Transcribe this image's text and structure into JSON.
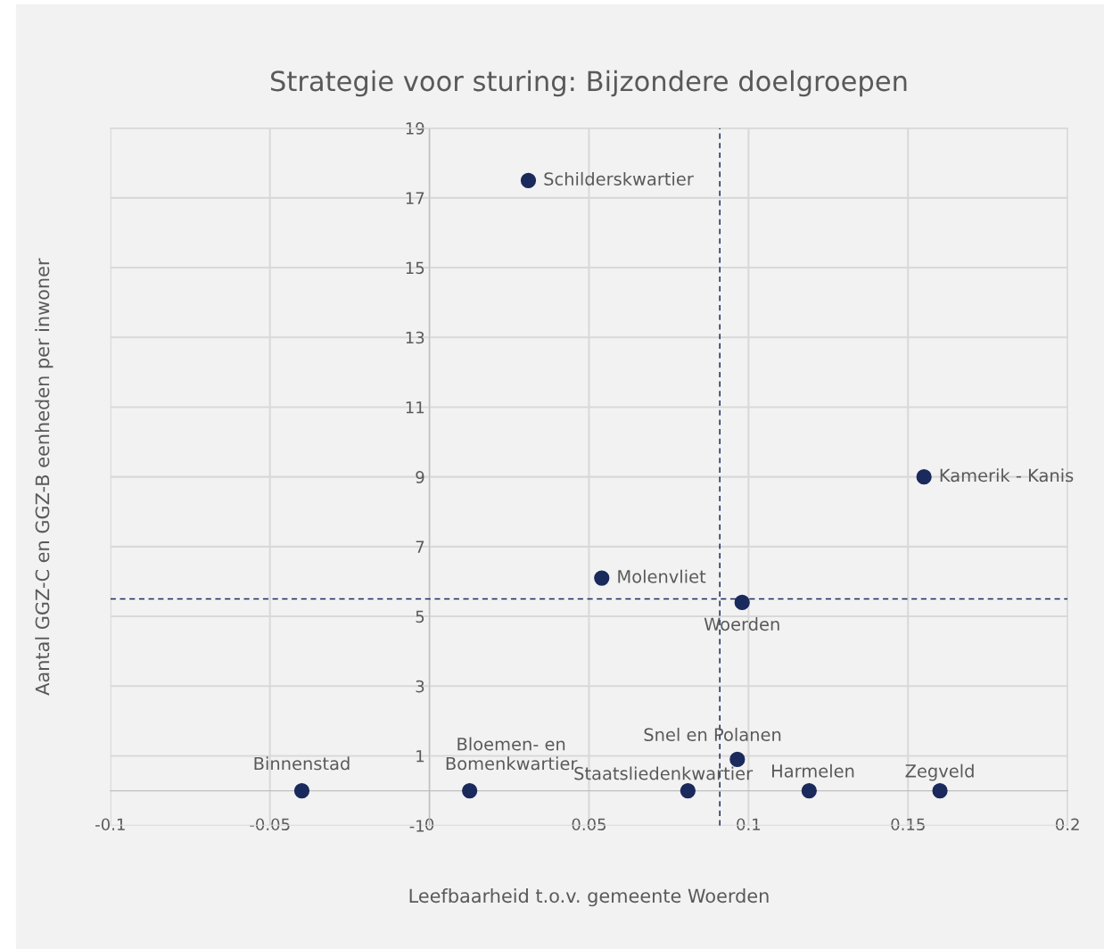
{
  "chart_data": {
    "type": "scatter",
    "title": "Strategie voor sturing: Bijzondere doelgroepen",
    "xlabel": "Leefbaarheid t.o.v. gemeente Woerden",
    "ylabel": "Aantal GGZ-C en GGZ-B eenheden per inwoner",
    "series": [
      {
        "color": "#1b2a5c",
        "x": [
          0.031,
          0.155,
          0.054,
          0.098,
          0.0965,
          -0.04,
          0.0126,
          0.081,
          0.119,
          0.16
        ],
        "values": [
          17.5,
          9,
          6.1,
          5.4,
          0.9,
          0,
          0,
          0,
          0,
          0
        ]
      }
    ],
    "annotations": [
      {
        "text": "Schilderskwartier",
        "x": 0.031,
        "y": 17.5
      },
      {
        "text": "Kamerik - Kanis",
        "x": 0.155,
        "y": 9
      },
      {
        "text": "Molenvliet",
        "x": 0.054,
        "y": 6.1
      },
      {
        "text": "Woerden",
        "x": 0.098,
        "y": 5.4
      },
      {
        "text": "Snel en Polanen",
        "x": 0.0965,
        "y": 0.9
      },
      {
        "text": "Binnenstad",
        "x": -0.04,
        "y": 0
      },
      {
        "text": "Bloemen- en\nBomenkwartier",
        "x": 0.0126,
        "y": 0
      },
      {
        "text": "Staatsliedenkwartier",
        "x": 0.081,
        "y": 0
      },
      {
        "text": "Harmelen",
        "x": 0.119,
        "y": 0
      },
      {
        "text": "Zegveld",
        "x": 0.16,
        "y": 0
      }
    ],
    "ref_lines": [
      {
        "axis": "x",
        "value": 0.091,
        "color": "#1b2a5c",
        "line_style": "dashed"
      },
      {
        "axis": "y",
        "value": 5.5,
        "color": "#1b2a5c",
        "line_style": "dashed"
      }
    ],
    "xlim": [
      -0.1,
      0.2
    ],
    "xticks": [
      -0.1,
      -0.05,
      0,
      0.05,
      0.1,
      0.15,
      0.2
    ],
    "ylim": [
      -1,
      19
    ],
    "yticks": [
      -1,
      1,
      3,
      5,
      7,
      9,
      11,
      13,
      15,
      17,
      19
    ],
    "grid": true,
    "marker": "circle",
    "legend": false
  }
}
